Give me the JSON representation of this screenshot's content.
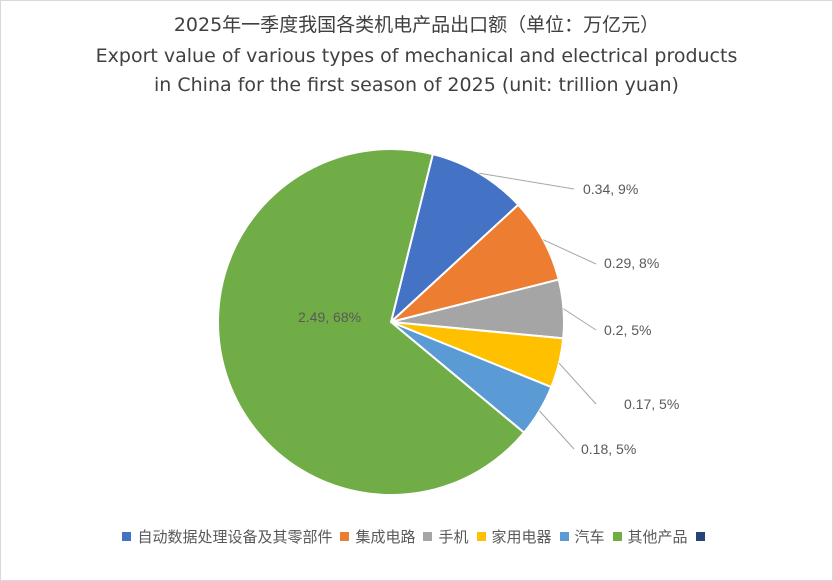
{
  "chart_data": {
    "type": "pie",
    "title": "2025年一季度我国各类机电产品出口额（单位：万亿元）",
    "subtitle_line1": "Export value of various types of mechanical and electrical products",
    "subtitle_line2": "in China for the first season of 2025 (unit: trillion yuan)",
    "slices": [
      {
        "name": "自动数据处理设备及其零部件",
        "value": 0.34,
        "label": "0.34, 9%",
        "color": "#4472C4"
      },
      {
        "name": "集成电路",
        "value": 0.29,
        "label": "0.29, 8%",
        "color": "#ED7D31"
      },
      {
        "name": "手机",
        "value": 0.2,
        "label": "0.2, 5%",
        "color": "#A5A5A5"
      },
      {
        "name": "家用电器",
        "value": 0.17,
        "label": "0.17, 5%",
        "color": "#FFC000"
      },
      {
        "name": "汽车",
        "value": 0.18,
        "label": "0.18, 5%",
        "color": "#5B9BD5"
      },
      {
        "name": "其他产品",
        "value": 2.49,
        "label": "2.49, 68%",
        "color": "#70AD47"
      }
    ],
    "legend": [
      {
        "name": "自动数据处理设备及其零部件",
        "color": "#4472C4"
      },
      {
        "name": "集成电路",
        "color": "#ED7D31"
      },
      {
        "name": "手机",
        "color": "#A5A5A5"
      },
      {
        "name": "家用电器",
        "color": "#FFC000"
      },
      {
        "name": "汽车",
        "color": "#5B9BD5"
      },
      {
        "name": "其他产品",
        "color": "#70AD47"
      },
      {
        "name": "",
        "color": "#264478"
      }
    ],
    "legend_position": "bottom"
  }
}
